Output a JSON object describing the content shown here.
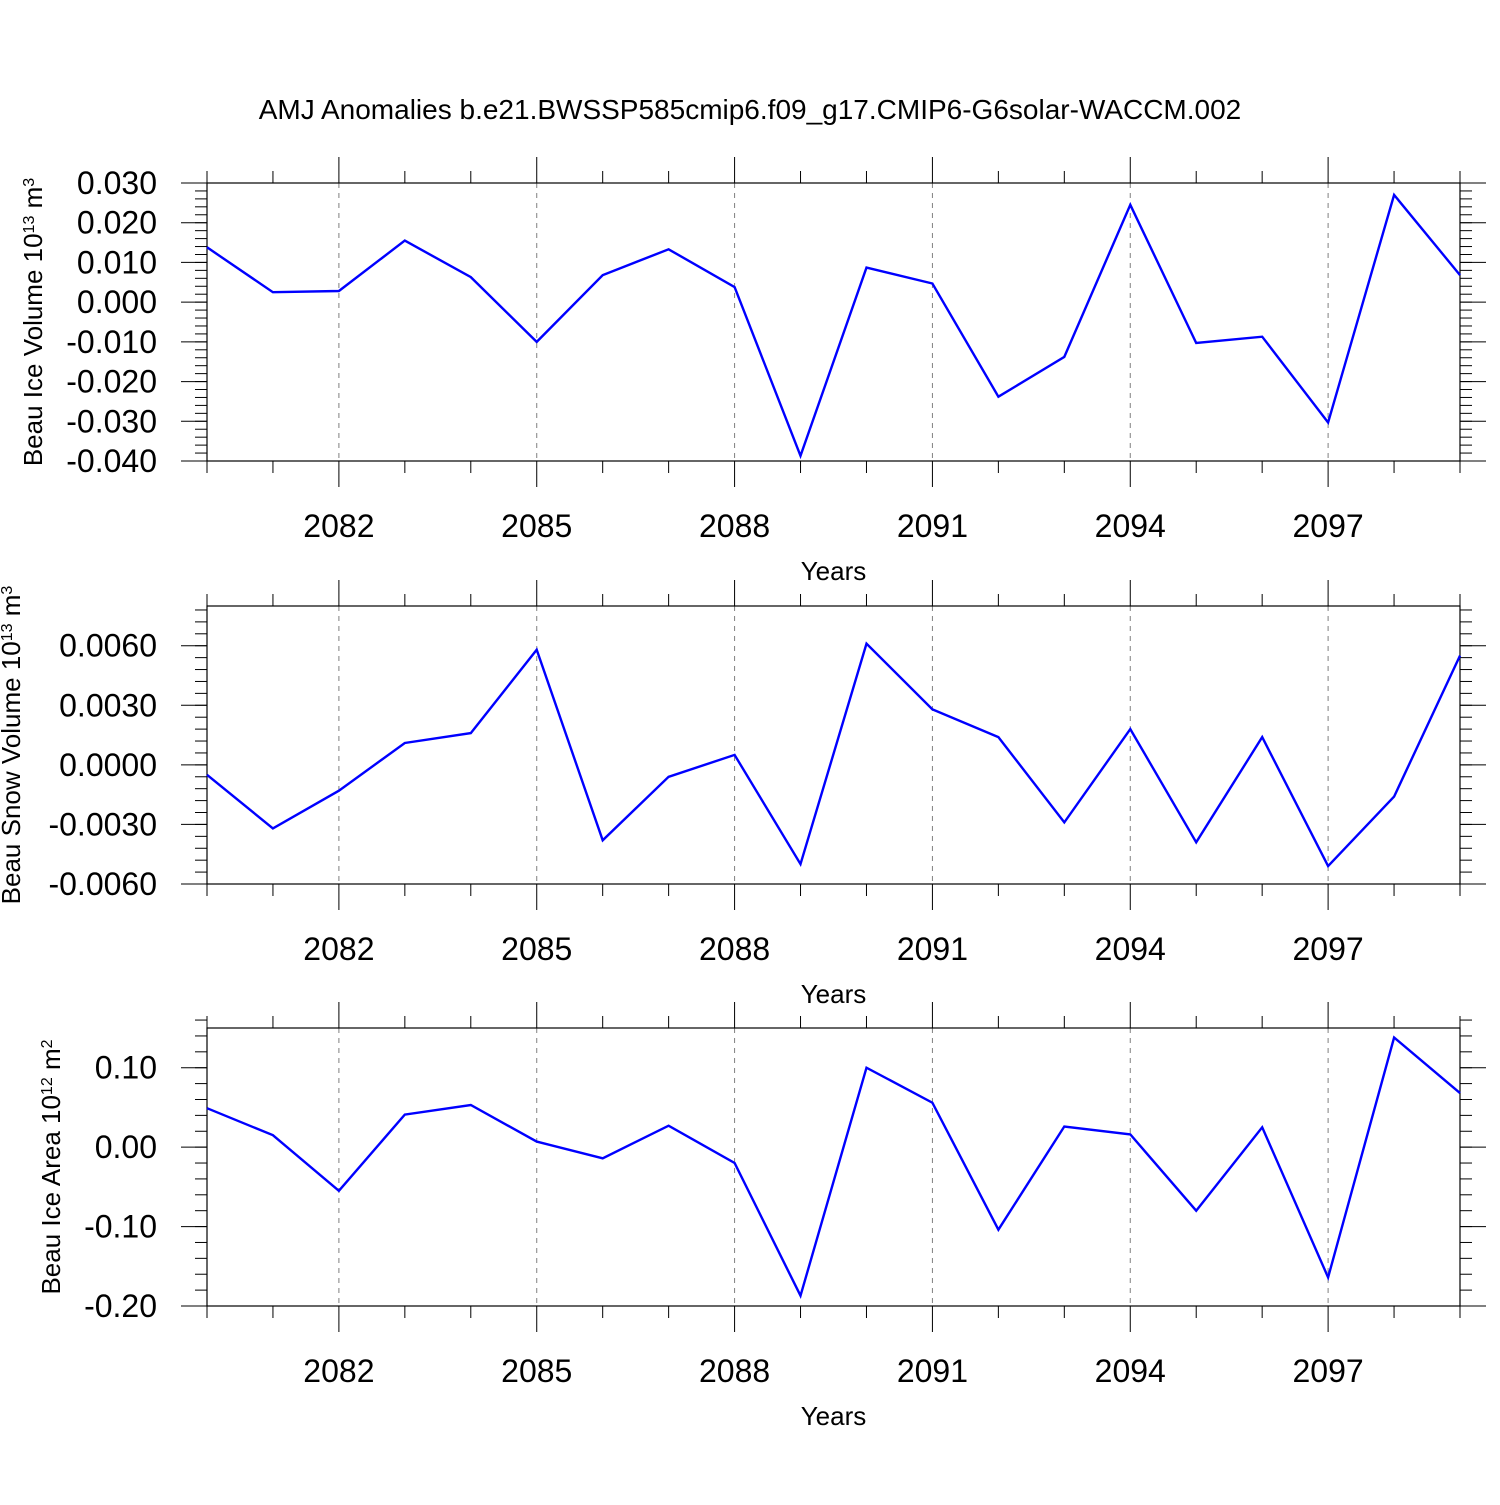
{
  "figure": {
    "title": "AMJ Anomalies b.e21.BWSSP585cmip6.f09_g17.CMIP6-G6solar-WACCM.002"
  },
  "colors": {
    "series": "#0000ff",
    "axis": "#000000",
    "grid": "#808080",
    "background": "#ffffff"
  },
  "chart_data": [
    {
      "type": "line",
      "title": "AMJ Anomalies b.e21.BWSSP585cmip6.f09_g17.CMIP6-G6solar-WACCM.002",
      "xlabel": "Years",
      "ylabel": {
        "text": "Beau Ice Volume 10",
        "sup": "13",
        "unit": " m",
        "unit_sup": "3"
      },
      "xlim": [
        2080,
        2099
      ],
      "ylim": [
        -0.04,
        0.03
      ],
      "xticks": [
        2082,
        2085,
        2088,
        2091,
        2094,
        2097
      ],
      "yticks": [
        0.03,
        0.02,
        0.01,
        0.0,
        -0.01,
        -0.02,
        -0.03,
        -0.04
      ],
      "ytick_labels": [
        "0.030",
        "0.020",
        "0.010",
        "0.000",
        "-0.010",
        "-0.020",
        "-0.030",
        "-0.040"
      ],
      "y_minor_step": 0.002,
      "grid": "vertical dashed at major x ticks",
      "x": [
        2080,
        2081,
        2082,
        2083,
        2084,
        2085,
        2086,
        2087,
        2088,
        2089,
        2090,
        2091,
        2092,
        2093,
        2094,
        2095,
        2096,
        2097,
        2098,
        2099
      ],
      "series": [
        {
          "values": [
            0.0138,
            0.0025,
            0.0028,
            0.0155,
            0.0063,
            -0.01,
            0.0068,
            0.0133,
            0.0038,
            -0.0387,
            0.0087,
            0.0047,
            -0.0238,
            -0.0138,
            0.0245,
            -0.0103,
            -0.0087,
            -0.0303,
            0.027,
            0.0068
          ]
        }
      ]
    },
    {
      "type": "line",
      "xlabel": "Years",
      "ylabel": {
        "text": "Beau Snow Volume 10",
        "sup": "13",
        "unit": " m",
        "unit_sup": "3"
      },
      "xlim": [
        2080,
        2099
      ],
      "ylim": [
        -0.006,
        0.008
      ],
      "xticks": [
        2082,
        2085,
        2088,
        2091,
        2094,
        2097
      ],
      "yticks": [
        0.006,
        0.003,
        0.0,
        -0.003,
        -0.006
      ],
      "ytick_labels": [
        "0.0060",
        "0.0030",
        "0.0000",
        "-0.0030",
        "-0.0060"
      ],
      "y_minor_step": 0.0006,
      "grid": "vertical dashed at major x ticks",
      "x": [
        2080,
        2081,
        2082,
        2083,
        2084,
        2085,
        2086,
        2087,
        2088,
        2089,
        2090,
        2091,
        2092,
        2093,
        2094,
        2095,
        2096,
        2097,
        2098,
        2099
      ],
      "series": [
        {
          "values": [
            -0.0005,
            -0.0032,
            -0.0013,
            0.0011,
            0.0016,
            0.0058,
            -0.0038,
            -0.0006,
            0.0005,
            -0.005,
            0.0061,
            0.0028,
            0.0014,
            -0.0029,
            0.0018,
            -0.0039,
            0.0014,
            -0.0051,
            -0.0016,
            0.0055
          ]
        }
      ]
    },
    {
      "type": "line",
      "xlabel": "Years",
      "ylabel": {
        "text": "Beau Ice Area 10",
        "sup": "12",
        "unit": " m",
        "unit_sup": "2"
      },
      "xlim": [
        2080,
        2099
      ],
      "ylim": [
        -0.2,
        0.15
      ],
      "xticks": [
        2082,
        2085,
        2088,
        2091,
        2094,
        2097
      ],
      "yticks": [
        0.1,
        0.0,
        -0.1,
        -0.2
      ],
      "ytick_labels": [
        "0.10",
        "0.00",
        "-0.10",
        "-0.20"
      ],
      "y_minor_step": 0.02,
      "grid": "vertical dashed at major x ticks",
      "x": [
        2080,
        2081,
        2082,
        2083,
        2084,
        2085,
        2086,
        2087,
        2088,
        2089,
        2090,
        2091,
        2092,
        2093,
        2094,
        2095,
        2096,
        2097,
        2098,
        2099
      ],
      "series": [
        {
          "values": [
            0.049,
            0.015,
            -0.055,
            0.041,
            0.053,
            0.007,
            -0.014,
            0.027,
            -0.02,
            -0.187,
            0.1,
            0.056,
            -0.104,
            0.026,
            0.016,
            -0.08,
            0.025,
            -0.164,
            0.138,
            0.068
          ]
        }
      ]
    }
  ]
}
